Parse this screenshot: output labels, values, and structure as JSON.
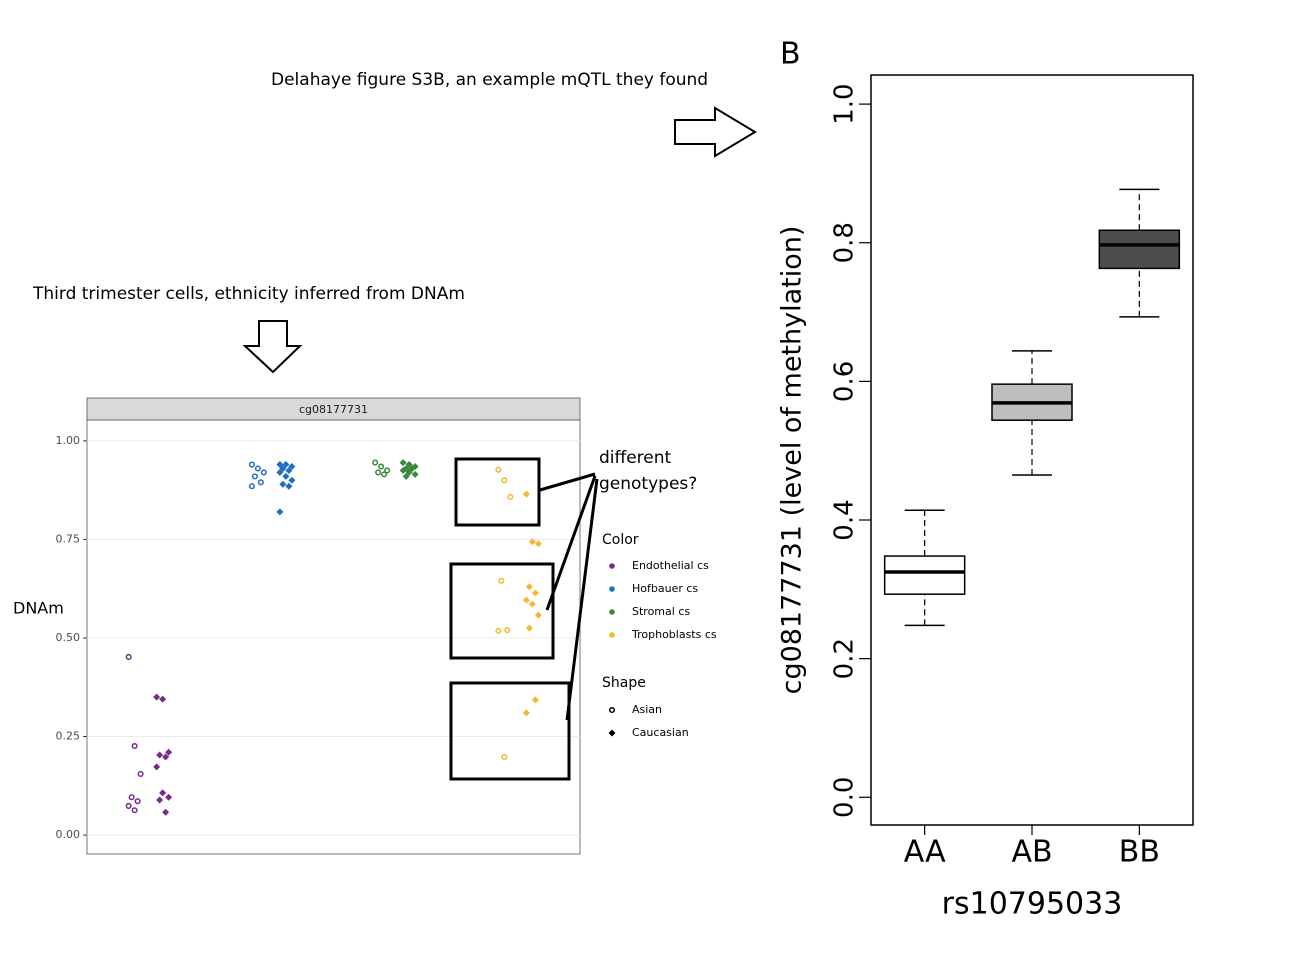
{
  "annotations": {
    "top": "Delahaye figure S3B, an example mQTL they found",
    "left": "Third trimester cells, ethnicity inferred from DNAm",
    "panel": "B",
    "question_1": "different",
    "question_2": "genotypes?"
  },
  "chart_data": [
    {
      "type": "strip",
      "facet": "cg08177731",
      "y_label": "DNAm",
      "categories": [
        null,
        null,
        null,
        null
      ],
      "ylim": [
        -0.048,
        1.053
      ],
      "yticks": [
        {
          "value": 0,
          "label": "0.00"
        },
        {
          "value": 0.25,
          "label": "0.25"
        },
        {
          "value": 0.5,
          "label": "0.50"
        },
        {
          "value": 0.75,
          "label": "0.75"
        },
        {
          "value": 1,
          "label": "1.00"
        }
      ],
      "grid": true,
      "color_legend_title": "Color",
      "shape_legend_title": "Shape",
      "shapes": [
        {
          "name": "Asian",
          "marker": "circle"
        },
        {
          "name": "Caucasian",
          "marker": "diamond"
        }
      ],
      "series": [
        {
          "name": "Endothelial cs",
          "color": "#7a2a8e",
          "values": [
            [
              0.452,
              0.226,
              0.155,
              0.096,
              0.086,
              0.074,
              0.063
            ],
            [
              0.35,
              0.345,
              0.21,
              0.203,
              0.198,
              0.173,
              0.107,
              0.096,
              0.089,
              0.058
            ]
          ]
        },
        {
          "name": "Hofbauer cs",
          "color": "#1f6fc0",
          "values": [
            [
              0.94,
              0.93,
              0.92,
              0.91,
              0.895,
              0.885
            ],
            [
              0.94,
              0.94,
              0.935,
              0.93,
              0.925,
              0.92,
              0.91,
              0.9,
              0.89,
              0.885,
              0.82
            ]
          ]
        },
        {
          "name": "Stromal cs",
          "color": "#3a8a3a",
          "values": [
            [
              0.945,
              0.935,
              0.925,
              0.92,
              0.915
            ],
            [
              0.945,
              0.94,
              0.935,
              0.93,
              0.93,
              0.925,
              0.92,
              0.915,
              0.91
            ]
          ]
        },
        {
          "name": "Trophoblasts cs",
          "color": "#f5b82e",
          "values": [
            [
              0.927,
              0.9,
              0.858,
              0.645,
              0.52,
              0.518,
              0.198
            ],
            [
              0.865,
              0.744,
              0.739,
              0.63,
              0.614,
              0.596,
              0.586,
              0.558,
              0.525,
              0.343,
              0.31
            ]
          ]
        }
      ]
    },
    {
      "type": "box",
      "x_label": "rs10795033",
      "y_label": "cg08177731  (level of methylation)",
      "categories": [
        "AA",
        "AB",
        "BB"
      ],
      "colors": [
        "#ffffff",
        "#bebebe",
        "#4d4d4d"
      ],
      "ylim": [
        -0.04,
        1.042
      ],
      "yticks": [
        {
          "value": 0,
          "label": "0.0"
        },
        {
          "value": 0.2,
          "label": "0.2"
        },
        {
          "value": 0.4,
          "label": "0.4"
        },
        {
          "value": 0.6,
          "label": "0.6"
        },
        {
          "value": 0.8,
          "label": "0.8"
        },
        {
          "value": 1,
          "label": "1.0"
        }
      ],
      "min": [
        0.248,
        0.465,
        0.693
      ],
      "q1": [
        0.293,
        0.544,
        0.763
      ],
      "median": [
        0.325,
        0.569,
        0.797
      ],
      "q3": [
        0.348,
        0.596,
        0.818
      ],
      "max": [
        0.414,
        0.644,
        0.877
      ]
    }
  ]
}
